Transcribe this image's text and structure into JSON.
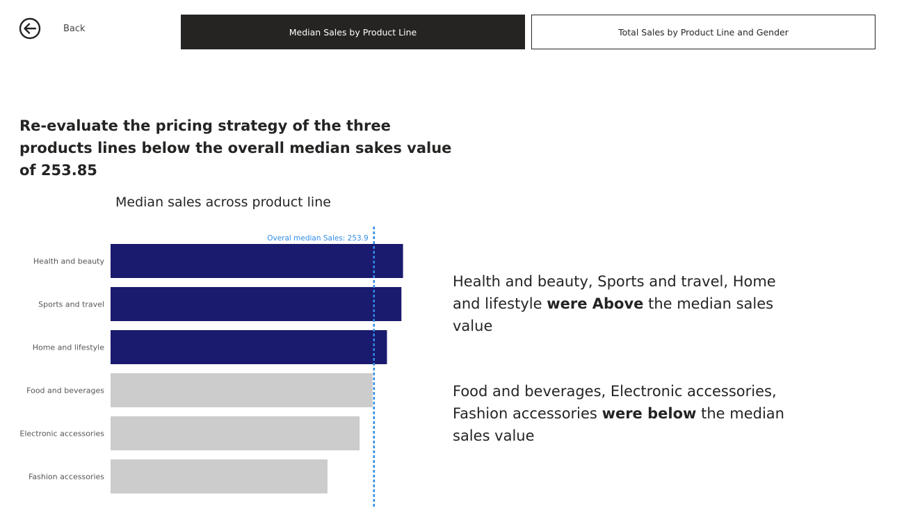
{
  "nav": {
    "back_label": "Back",
    "tabs": [
      {
        "label": "Median Sales by Product Line",
        "active": true
      },
      {
        "label": "Total Sales by Product Line and Gender",
        "active": false
      }
    ]
  },
  "headline": "Re-evaluate the pricing strategy of the three products lines below the overall median sakes value of 253.85",
  "insights": {
    "above": {
      "pre": "Health and beauty, Sports and travel, Home and lifestyle ",
      "bold": "were Above",
      "post": " the median sales value"
    },
    "below": {
      "pre": "Food and beverages, Electronic accessories, Fashion accessories ",
      "bold": "were below",
      "post": " the median sales value"
    }
  },
  "colors": {
    "above": "#1a1a6e",
    "below": "#cccccc",
    "reference": "#2f8de4",
    "active_tab": "#252423"
  },
  "chart_data": {
    "type": "bar",
    "orientation": "horizontal",
    "title": "Median sales across product line",
    "categories": [
      "Health and beauty",
      "Sports and travel",
      "Home and lifestyle",
      "Food and beverages",
      "Electronic accessories",
      "Fashion accessories"
    ],
    "values": [
      272,
      271,
      262,
      253,
      245,
      225
    ],
    "groups": [
      "above",
      "above",
      "above",
      "below",
      "below",
      "below"
    ],
    "reference_line": {
      "value": 253.9,
      "label": "Overal median Sales: 253.9"
    },
    "xlim": [
      90,
      283
    ]
  }
}
